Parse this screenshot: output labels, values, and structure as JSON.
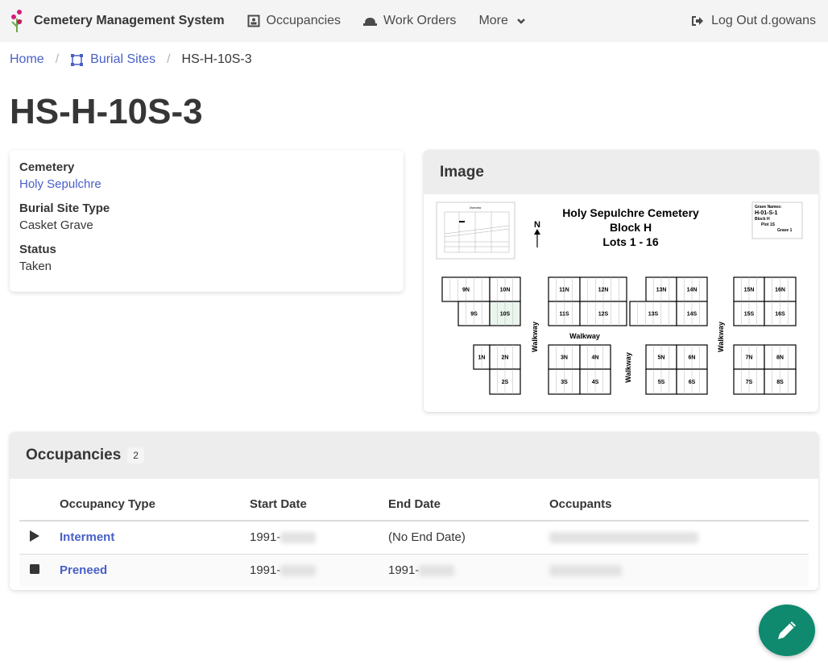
{
  "nav": {
    "brand": "Cemetery Management System",
    "items": [
      {
        "label": "Occupancies",
        "icon": "occupancy-icon"
      },
      {
        "label": "Work Orders",
        "icon": "hard-hat-icon"
      },
      {
        "label": "More",
        "icon": "chevron-down-icon"
      }
    ],
    "logout": "Log Out d.gowans"
  },
  "breadcrumb": {
    "home": "Home",
    "burial_sites": "Burial Sites",
    "current": "HS-H-10S-3"
  },
  "title": "HS-H-10S-3",
  "info": {
    "cemetery_label": "Cemetery",
    "cemetery_value": "Holy Sepulchre",
    "type_label": "Burial Site Type",
    "type_value": "Casket Grave",
    "status_label": "Status",
    "status_value": "Taken"
  },
  "image_card": {
    "title": "Image",
    "map": {
      "heading": [
        "Holy Sepulchre Cemetery",
        "Block H",
        "Lots 1 - 16"
      ],
      "north": "N",
      "overview": "Overview",
      "legend": [
        "Grave Names:",
        "H-01-S-1",
        "Block H",
        "Plot 1S",
        "Grave 1"
      ],
      "walkway": "Walkway",
      "lots": [
        "9N",
        "10N",
        "9S",
        "10S",
        "11N",
        "12N",
        "11S",
        "12S",
        "13N",
        "14N",
        "13S",
        "14S",
        "15N",
        "16N",
        "15S",
        "16S",
        "1N",
        "2N",
        "2S",
        "3N",
        "4N",
        "3S",
        "4S",
        "5N",
        "6N",
        "5S",
        "6S",
        "7N",
        "8N",
        "7S",
        "8S"
      ],
      "highlighted_lot": "10S",
      "highlight_color": "#eaf5ee"
    }
  },
  "occupancies": {
    "title": "Occupancies",
    "count": "2",
    "columns": [
      "Occupancy Type",
      "Start Date",
      "End Date",
      "Occupants"
    ],
    "rows": [
      {
        "icon": "play-icon",
        "type": "Interment",
        "start": "1991-",
        "end": "(No End Date)"
      },
      {
        "icon": "stop-icon",
        "type": "Preneed",
        "start": "1991-",
        "end": "1991-"
      }
    ]
  },
  "colors": {
    "link": "#485fc7",
    "fab": "#0f8a6f"
  }
}
